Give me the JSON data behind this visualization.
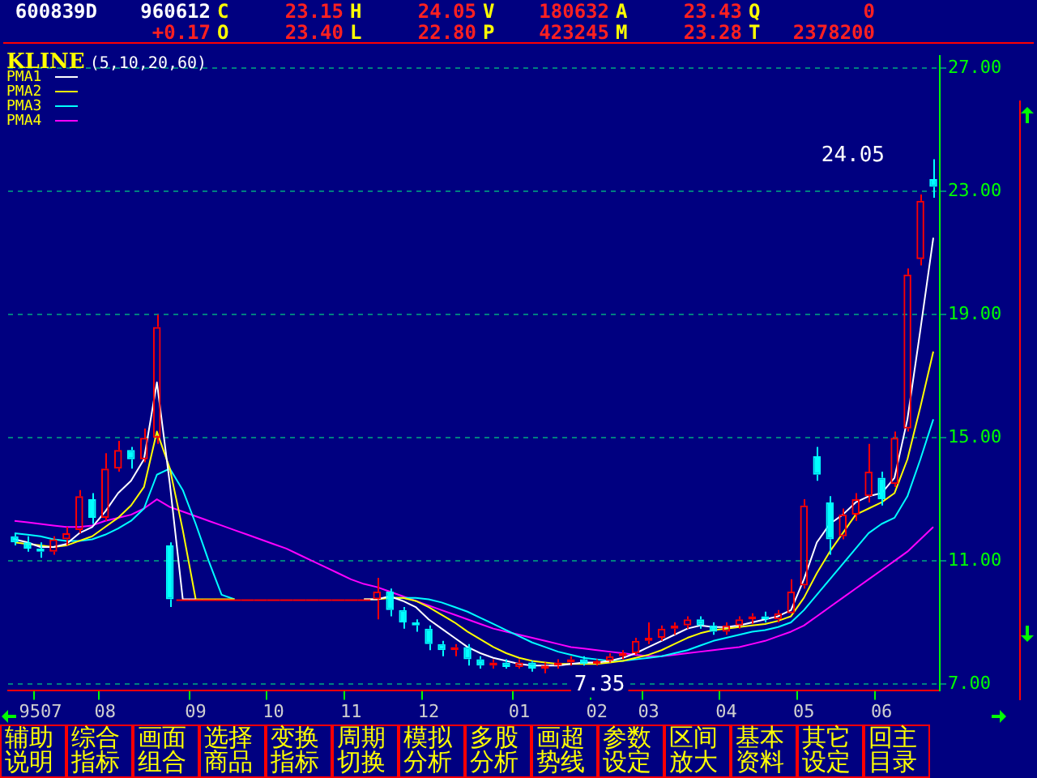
{
  "chart_data": [
    {
      "type": "other",
      "annotations": [
        "600839D",
        "960612",
        "C",
        "23.15",
        "H",
        "24.05",
        "V",
        "180632",
        "A",
        "23.43",
        "Q",
        "0",
        "+0.17",
        "O",
        "23.40",
        "L",
        "22.80",
        "P",
        "423245",
        "M",
        "23.28",
        "T",
        "2378200"
      ]
    },
    {
      "type": "candlestick",
      "title": "KLINE",
      "subtitle": "(5,10,20,60)",
      "categories": [
        null,
        null,
        "9507",
        null,
        null,
        null,
        null,
        "08",
        null,
        null,
        null,
        null,
        null,
        null,
        "09",
        null,
        null,
        null,
        null,
        null,
        "10",
        null,
        null,
        null,
        null,
        null,
        "11",
        null,
        null,
        null,
        null,
        null,
        "12",
        null,
        null,
        null,
        null,
        null,
        null,
        "01",
        null,
        null,
        null,
        null,
        null,
        "02",
        null,
        null,
        null,
        "03",
        null,
        null,
        null,
        null,
        null,
        "04",
        null,
        null,
        null,
        null,
        null,
        "05",
        null,
        null,
        null,
        null,
        null,
        "06",
        null,
        null,
        null,
        null
      ],
      "ohlc": [
        [
          11.8,
          11.9,
          11.5,
          11.6
        ],
        [
          11.6,
          11.8,
          11.3,
          11.4
        ],
        [
          11.4,
          11.6,
          11.1,
          11.3
        ],
        [
          11.3,
          11.8,
          11.2,
          11.7
        ],
        [
          11.7,
          12.1,
          11.5,
          11.9
        ],
        [
          12.0,
          13.3,
          11.9,
          13.1
        ],
        [
          13.0,
          13.2,
          12.2,
          12.4
        ],
        [
          12.4,
          14.5,
          12.3,
          14.0
        ],
        [
          14.0,
          14.9,
          13.9,
          14.6
        ],
        [
          14.6,
          14.7,
          14.0,
          14.3
        ],
        [
          14.3,
          15.3,
          14.2,
          15.0
        ],
        [
          15.0,
          19.0,
          14.8,
          18.6
        ],
        [
          11.5,
          11.6,
          9.5,
          9.75
        ],
        [
          9.75,
          9.75,
          9.75,
          9.75
        ],
        [
          9.75,
          9.75,
          9.75,
          9.75
        ],
        [
          9.75,
          9.75,
          9.75,
          9.75
        ],
        [
          9.75,
          9.75,
          9.75,
          9.75
        ],
        [
          9.75,
          9.75,
          9.75,
          9.75
        ],
        [
          9.75,
          9.75,
          9.75,
          9.75
        ],
        [
          9.75,
          9.75,
          9.75,
          9.75
        ],
        [
          9.75,
          9.75,
          9.75,
          9.75
        ],
        [
          9.75,
          9.75,
          9.75,
          9.75
        ],
        [
          9.75,
          9.75,
          9.75,
          9.75
        ],
        [
          9.75,
          9.75,
          9.75,
          9.75
        ],
        [
          9.75,
          9.75,
          9.75,
          9.75
        ],
        [
          9.75,
          9.75,
          9.75,
          9.75
        ],
        [
          9.75,
          9.75,
          9.75,
          9.75
        ],
        [
          9.75,
          9.75,
          9.75,
          9.75
        ],
        [
          9.75,
          10.45,
          9.1,
          10.0
        ],
        [
          10.0,
          10.1,
          9.2,
          9.4
        ],
        [
          9.4,
          9.5,
          8.8,
          9.0
        ],
        [
          9.0,
          9.1,
          8.7,
          8.9
        ],
        [
          8.8,
          8.9,
          8.1,
          8.3
        ],
        [
          8.3,
          8.4,
          7.9,
          8.1
        ],
        [
          8.1,
          8.3,
          7.9,
          8.2
        ],
        [
          8.2,
          8.3,
          7.6,
          7.8
        ],
        [
          7.8,
          7.9,
          7.5,
          7.6
        ],
        [
          7.6,
          7.8,
          7.5,
          7.7
        ],
        [
          7.7,
          7.8,
          7.5,
          7.55
        ],
        [
          7.55,
          7.8,
          7.5,
          7.7
        ],
        [
          7.7,
          7.75,
          7.4,
          7.5
        ],
        [
          7.5,
          7.7,
          7.35,
          7.6
        ],
        [
          7.6,
          7.8,
          7.5,
          7.7
        ],
        [
          7.7,
          7.9,
          7.6,
          7.8
        ],
        [
          7.8,
          7.9,
          7.6,
          7.65
        ],
        [
          7.65,
          7.8,
          7.6,
          7.75
        ],
        [
          7.75,
          8.0,
          7.7,
          7.9
        ],
        [
          7.9,
          8.1,
          7.8,
          8.0
        ],
        [
          8.0,
          8.5,
          7.95,
          8.4
        ],
        [
          8.4,
          9.0,
          8.3,
          8.5
        ],
        [
          8.5,
          8.9,
          8.4,
          8.8
        ],
        [
          8.8,
          9.0,
          8.6,
          8.9
        ],
        [
          8.9,
          9.2,
          8.8,
          9.1
        ],
        [
          9.1,
          9.2,
          8.8,
          8.9
        ],
        [
          8.9,
          9.0,
          8.6,
          8.7
        ],
        [
          8.7,
          9.0,
          8.6,
          8.9
        ],
        [
          8.9,
          9.2,
          8.8,
          9.1
        ],
        [
          9.1,
          9.3,
          8.95,
          9.2
        ],
        [
          9.2,
          9.35,
          9.0,
          9.1
        ],
        [
          9.1,
          9.4,
          9.0,
          9.3
        ],
        [
          9.3,
          10.4,
          9.3,
          10.0
        ],
        [
          10.2,
          13.0,
          10.1,
          12.8
        ],
        [
          14.4,
          14.7,
          13.6,
          13.8
        ],
        [
          12.9,
          13.1,
          11.2,
          11.7
        ],
        [
          11.8,
          12.7,
          11.7,
          12.5
        ],
        [
          12.5,
          13.2,
          12.3,
          13.0
        ],
        [
          13.1,
          14.8,
          12.9,
          13.9
        ],
        [
          13.7,
          13.9,
          12.8,
          13.0
        ],
        [
          13.5,
          15.2,
          13.4,
          15.0
        ],
        [
          15.3,
          20.5,
          15.2,
          20.3
        ],
        [
          20.8,
          22.9,
          20.6,
          22.7
        ],
        [
          23.4,
          24.05,
          22.8,
          23.15
        ]
      ],
      "series": [
        {
          "name": "PMA1",
          "type": "line",
          "color": "#ffffff",
          "values": [
            11.7,
            11.6,
            11.45,
            11.45,
            11.55,
            11.9,
            12.1,
            12.6,
            13.2,
            13.6,
            14.3,
            16.8,
            13.5,
            9.75,
            9.75,
            null,
            null,
            null,
            null,
            null,
            null,
            null,
            null,
            null,
            null,
            null,
            null,
            9.75,
            9.75,
            9.85,
            9.7,
            9.5,
            9.1,
            8.8,
            8.5,
            8.2,
            8.0,
            7.85,
            7.75,
            7.65,
            7.6,
            7.6,
            7.6,
            7.65,
            7.7,
            7.7,
            7.75,
            7.85,
            8.0,
            8.2,
            8.4,
            8.6,
            8.8,
            8.9,
            8.85,
            8.85,
            8.9,
            9.0,
            9.1,
            9.2,
            9.4,
            10.4,
            11.6,
            12.2,
            12.5,
            12.9,
            13.1,
            13.2,
            13.7,
            15.6,
            18.5,
            21.5
          ]
        },
        {
          "name": "PMA2",
          "type": "line",
          "color": "#ffff00",
          "values": [
            11.6,
            11.55,
            11.5,
            11.45,
            11.5,
            11.65,
            11.8,
            12.1,
            12.4,
            12.8,
            13.4,
            15.2,
            14.0,
            12.0,
            9.75,
            9.75,
            9.75,
            9.75,
            null,
            null,
            null,
            null,
            null,
            null,
            null,
            null,
            null,
            9.75,
            9.75,
            9.8,
            9.8,
            9.7,
            9.5,
            9.25,
            9.0,
            8.7,
            8.45,
            8.2,
            8.0,
            7.85,
            7.75,
            7.7,
            7.65,
            7.65,
            7.65,
            7.65,
            7.7,
            7.75,
            7.85,
            7.95,
            8.1,
            8.3,
            8.5,
            8.65,
            8.75,
            8.8,
            8.85,
            8.9,
            8.95,
            9.05,
            9.2,
            9.8,
            10.6,
            11.3,
            11.9,
            12.5,
            12.7,
            12.9,
            13.2,
            14.3,
            16.0,
            17.8
          ]
        },
        {
          "name": "PMA3",
          "type": "line",
          "color": "#00ffff",
          "values": [
            11.9,
            11.85,
            11.8,
            11.7,
            11.65,
            11.65,
            11.7,
            11.85,
            12.05,
            12.3,
            12.7,
            13.8,
            14.0,
            13.3,
            12.2,
            11.0,
            9.9,
            9.75,
            null,
            null,
            null,
            null,
            null,
            null,
            null,
            null,
            null,
            null,
            null,
            9.8,
            9.8,
            9.8,
            9.75,
            9.65,
            9.5,
            9.35,
            9.15,
            8.95,
            8.75,
            8.55,
            8.35,
            8.2,
            8.05,
            7.95,
            7.85,
            7.8,
            7.75,
            7.75,
            7.8,
            7.85,
            7.9,
            8.0,
            8.1,
            8.25,
            8.4,
            8.5,
            8.6,
            8.7,
            8.75,
            8.85,
            9.0,
            9.4,
            9.9,
            10.4,
            10.9,
            11.4,
            11.9,
            12.2,
            12.4,
            13.1,
            14.3,
            15.6
          ]
        },
        {
          "name": "PMA4",
          "type": "line",
          "color": "#ff00ff",
          "values": [
            12.3,
            12.25,
            12.2,
            12.15,
            12.1,
            12.1,
            12.15,
            12.3,
            12.4,
            12.5,
            12.7,
            13.0,
            12.75,
            12.6,
            12.45,
            12.3,
            12.15,
            12.0,
            11.85,
            11.7,
            11.55,
            11.4,
            11.2,
            11.0,
            10.8,
            10.6,
            10.4,
            10.25,
            10.15,
            10.0,
            9.85,
            9.7,
            9.55,
            9.4,
            9.25,
            9.1,
            8.95,
            8.8,
            8.7,
            8.6,
            8.5,
            8.4,
            8.3,
            8.2,
            8.15,
            8.1,
            8.05,
            8.0,
            7.95,
            7.9,
            7.9,
            7.95,
            8.0,
            8.05,
            8.1,
            8.15,
            8.2,
            8.3,
            8.4,
            8.55,
            8.7,
            8.9,
            9.2,
            9.5,
            9.8,
            10.1,
            10.4,
            10.7,
            11.0,
            11.3,
            11.7,
            12.1
          ]
        }
      ],
      "ylim": [
        6.8,
        27.4
      ],
      "yticks": [
        {
          "value": 7,
          "label": "7.00"
        },
        {
          "value": 11,
          "label": "11.00"
        },
        {
          "value": 15,
          "label": "15.00"
        },
        {
          "value": 19,
          "label": "19.00"
        },
        {
          "value": 23,
          "label": "23.00"
        },
        {
          "value": 27,
          "label": "27.00"
        }
      ],
      "grid": "y",
      "legend": "top left",
      "annotations": [
        "24.05",
        "7.35"
      ]
    },
    {
      "type": "other",
      "annotations": [
        "辅助说明",
        "综合指标",
        "画面组合",
        "选择商品",
        "变换指标",
        "周期切换",
        "模拟分析",
        "多股分析",
        "画超势线",
        "参数设定",
        "区间放大",
        "基本资料",
        "其它设定",
        "回主目录"
      ]
    }
  ]
}
